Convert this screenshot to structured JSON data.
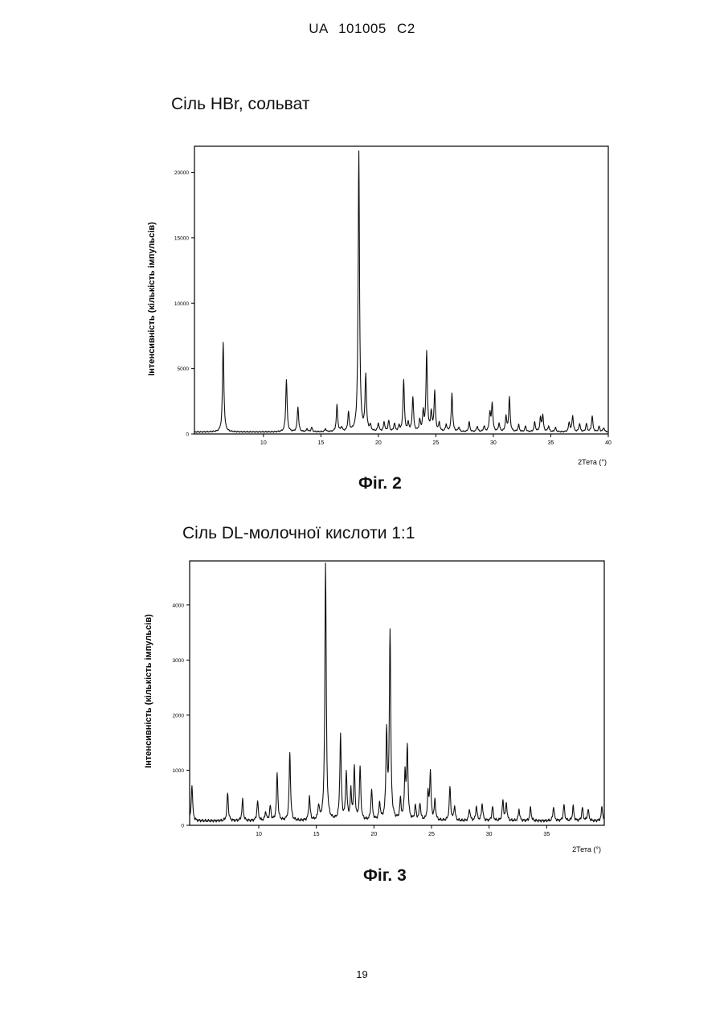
{
  "header": "UA 101005 C2",
  "page_number": "19",
  "chart_data": [
    {
      "type": "line",
      "title": "Сіль HBr, сольват",
      "caption": "Фіг. 2",
      "xlabel": "2Тета (°)",
      "ylabel": "Інтенсивність (кількість імпульсів)",
      "xlim": [
        4,
        40
      ],
      "ylim": [
        0,
        22000
      ],
      "xticks": [
        10,
        15,
        20,
        25,
        30,
        35,
        40
      ],
      "xtick_labels": [
        "10",
        "15",
        "20",
        "25",
        "30",
        "35",
        "40"
      ],
      "yticks": [
        0,
        5000,
        10000,
        15000,
        20000
      ],
      "ytick_labels": [
        "0",
        "5000",
        "10000",
        "15000",
        "20000"
      ],
      "baseline": 150,
      "peaks": [
        {
          "x": 6.5,
          "y": 6900
        },
        {
          "x": 12.0,
          "y": 4100
        },
        {
          "x": 13.0,
          "y": 2000
        },
        {
          "x": 13.8,
          "y": 300
        },
        {
          "x": 14.2,
          "y": 400
        },
        {
          "x": 15.4,
          "y": 300
        },
        {
          "x": 16.4,
          "y": 2100
        },
        {
          "x": 16.8,
          "y": 400
        },
        {
          "x": 17.4,
          "y": 1500
        },
        {
          "x": 18.3,
          "y": 21500
        },
        {
          "x": 18.9,
          "y": 4300
        },
        {
          "x": 19.3,
          "y": 500
        },
        {
          "x": 20.0,
          "y": 700
        },
        {
          "x": 20.5,
          "y": 800
        },
        {
          "x": 20.9,
          "y": 900
        },
        {
          "x": 21.4,
          "y": 700
        },
        {
          "x": 21.8,
          "y": 500
        },
        {
          "x": 22.2,
          "y": 4000
        },
        {
          "x": 22.6,
          "y": 700
        },
        {
          "x": 23.0,
          "y": 2700
        },
        {
          "x": 23.6,
          "y": 900
        },
        {
          "x": 23.9,
          "y": 1500
        },
        {
          "x": 24.2,
          "y": 6100
        },
        {
          "x": 24.6,
          "y": 1500
        },
        {
          "x": 24.9,
          "y": 3100
        },
        {
          "x": 25.3,
          "y": 700
        },
        {
          "x": 25.9,
          "y": 600
        },
        {
          "x": 26.4,
          "y": 3000
        },
        {
          "x": 27.0,
          "y": 400
        },
        {
          "x": 27.9,
          "y": 800
        },
        {
          "x": 28.6,
          "y": 500
        },
        {
          "x": 29.2,
          "y": 500
        },
        {
          "x": 29.7,
          "y": 1500
        },
        {
          "x": 29.9,
          "y": 2200
        },
        {
          "x": 30.5,
          "y": 700
        },
        {
          "x": 31.1,
          "y": 1200
        },
        {
          "x": 31.4,
          "y": 2700
        },
        {
          "x": 32.2,
          "y": 600
        },
        {
          "x": 32.8,
          "y": 500
        },
        {
          "x": 33.6,
          "y": 800
        },
        {
          "x": 34.1,
          "y": 1100
        },
        {
          "x": 34.3,
          "y": 1300
        },
        {
          "x": 34.8,
          "y": 500
        },
        {
          "x": 35.4,
          "y": 400
        },
        {
          "x": 36.6,
          "y": 800
        },
        {
          "x": 36.9,
          "y": 1300
        },
        {
          "x": 37.5,
          "y": 700
        },
        {
          "x": 38.1,
          "y": 700
        },
        {
          "x": 38.6,
          "y": 1300
        },
        {
          "x": 39.2,
          "y": 500
        },
        {
          "x": 39.6,
          "y": 400
        }
      ]
    },
    {
      "type": "line",
      "title": "Сіль DL-молочної кислоти 1:1",
      "caption": "Фіг. 3",
      "xlabel": "2Тета (°)",
      "ylabel": "Інтенсивність (кількість імпульсів)",
      "xlim": [
        4,
        40
      ],
      "ylim": [
        0,
        4800
      ],
      "xticks": [
        10,
        15,
        20,
        25,
        30,
        35
      ],
      "xtick_labels": [
        "10",
        "15",
        "20",
        "25",
        "30",
        "35"
      ],
      "yticks": [
        0,
        1000,
        2000,
        3000,
        4000
      ],
      "ytick_labels": [
        "0",
        "1000",
        "2000",
        "3000",
        "4000"
      ],
      "baseline": 80,
      "peaks": [
        {
          "x": 4.2,
          "y": 700
        },
        {
          "x": 7.3,
          "y": 550
        },
        {
          "x": 8.6,
          "y": 420
        },
        {
          "x": 9.9,
          "y": 400
        },
        {
          "x": 10.6,
          "y": 200
        },
        {
          "x": 11.0,
          "y": 300
        },
        {
          "x": 11.6,
          "y": 900
        },
        {
          "x": 12.7,
          "y": 1270
        },
        {
          "x": 14.4,
          "y": 480
        },
        {
          "x": 15.2,
          "y": 300
        },
        {
          "x": 15.8,
          "y": 4700
        },
        {
          "x": 17.1,
          "y": 1600
        },
        {
          "x": 17.6,
          "y": 900
        },
        {
          "x": 18.0,
          "y": 550
        },
        {
          "x": 18.3,
          "y": 1000
        },
        {
          "x": 18.8,
          "y": 1000
        },
        {
          "x": 19.8,
          "y": 600
        },
        {
          "x": 20.5,
          "y": 350
        },
        {
          "x": 21.1,
          "y": 1600
        },
        {
          "x": 21.4,
          "y": 3450
        },
        {
          "x": 22.3,
          "y": 400
        },
        {
          "x": 22.7,
          "y": 850
        },
        {
          "x": 22.9,
          "y": 1350
        },
        {
          "x": 23.6,
          "y": 300
        },
        {
          "x": 24.0,
          "y": 350
        },
        {
          "x": 24.7,
          "y": 500
        },
        {
          "x": 24.9,
          "y": 900
        },
        {
          "x": 25.3,
          "y": 400
        },
        {
          "x": 26.6,
          "y": 650
        },
        {
          "x": 27.0,
          "y": 300
        },
        {
          "x": 28.3,
          "y": 250
        },
        {
          "x": 28.9,
          "y": 300
        },
        {
          "x": 29.4,
          "y": 350
        },
        {
          "x": 30.3,
          "y": 300
        },
        {
          "x": 31.2,
          "y": 400
        },
        {
          "x": 31.5,
          "y": 350
        },
        {
          "x": 32.6,
          "y": 250
        },
        {
          "x": 33.6,
          "y": 280
        },
        {
          "x": 35.6,
          "y": 300
        },
        {
          "x": 36.5,
          "y": 330
        },
        {
          "x": 37.3,
          "y": 300
        },
        {
          "x": 38.1,
          "y": 280
        },
        {
          "x": 38.6,
          "y": 250
        },
        {
          "x": 39.8,
          "y": 300
        }
      ]
    }
  ]
}
